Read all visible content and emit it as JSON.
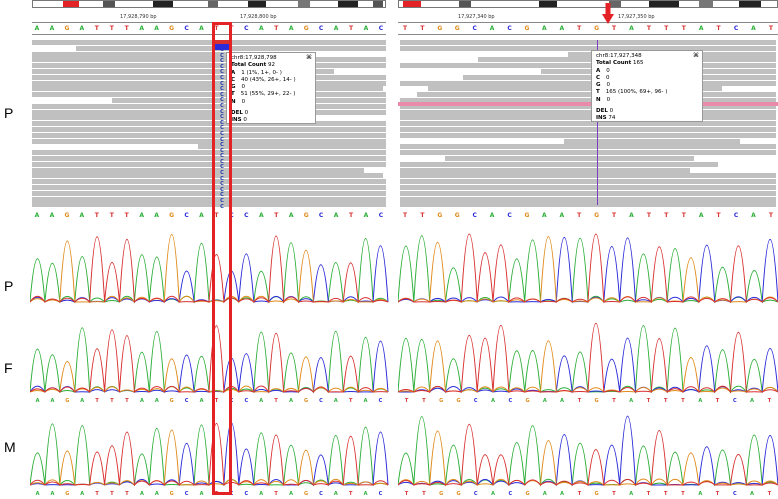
{
  "row_labels": [
    "P",
    "P",
    "F",
    "M"
  ],
  "colors": {
    "A": "#2eaf3a",
    "C": "#2b2bd9",
    "G": "#e08a1a",
    "T": "#d93030",
    "read": "#c0c0c0",
    "highlight": "#e32226",
    "insertion": "#7a3ec2"
  },
  "left_igv": {
    "tick1": "17,928,790 bp",
    "tick2": "17,928,800 bp",
    "reference_bases": [
      "A",
      "A",
      "G",
      "A",
      "T",
      "T",
      "T",
      "A",
      "A",
      "G",
      "C",
      "A",
      "T",
      "T",
      "C",
      "A",
      "T",
      "A",
      "G",
      "C",
      "A",
      "T",
      "A",
      "C"
    ],
    "read_base_column": [
      "C",
      "C",
      "C",
      "C",
      "C",
      "C",
      "C",
      "C",
      "C",
      "C",
      "C",
      "C",
      "C",
      "C",
      "C",
      "C",
      "C",
      "C",
      "C",
      "C",
      "C",
      "C",
      "C",
      "C",
      "C",
      "C",
      "C",
      "C",
      "C"
    ],
    "consensus_bases": [
      "A",
      "A",
      "G",
      "A",
      "T",
      "T",
      "T",
      "A",
      "A",
      "G",
      "C",
      "A",
      "T",
      "C",
      "C",
      "A",
      "T",
      "A",
      "G",
      "C",
      "A",
      "T",
      "A",
      "C"
    ],
    "popup": {
      "close": "⌘",
      "position": "chr8:17,928,798",
      "total_label": "Total Count",
      "total_value": "92",
      "lines": [
        {
          "base": "A",
          "value": "1 (1%, 1+, 0- )"
        },
        {
          "base": "C",
          "value": "40 (43%, 26+, 14- )"
        },
        {
          "base": "G",
          "value": "0"
        },
        {
          "base": "T",
          "value": "51 (55%, 29+, 22- )"
        },
        {
          "base": "N",
          "value": "0"
        }
      ],
      "del_label": "DEL",
      "del_value": "0",
      "ins_label": "INS",
      "ins_value": "0"
    }
  },
  "right_igv": {
    "tick1": "17,927,340 bp",
    "tick2": "17,927,350 bp",
    "reference_bases": [
      "T",
      "T",
      "G",
      "G",
      "C",
      "A",
      "C",
      "G",
      "A",
      "A",
      "T",
      "G",
      "T",
      "A",
      "T",
      "T",
      "T",
      "A",
      "T",
      "C",
      "A",
      "T"
    ],
    "consensus_bases": [
      "T",
      "T",
      "G",
      "G",
      "C",
      "A",
      "C",
      "G",
      "A",
      "A",
      "T",
      "G",
      "T",
      "A",
      "T",
      "T",
      "T",
      "A",
      "T",
      "C",
      "A",
      "T"
    ],
    "popup": {
      "close": "⌘",
      "position": "chr8:17,927,348",
      "total_label": "Total Count",
      "total_value": "165",
      "lines": [
        {
          "base": "A",
          "value": "0"
        },
        {
          "base": "C",
          "value": "0"
        },
        {
          "base": "G",
          "value": "0"
        },
        {
          "base": "T",
          "value": "165 (100%, 69+, 96- )"
        },
        {
          "base": "N",
          "value": "0"
        }
      ],
      "del_label": "DEL",
      "del_value": "0",
      "ins_label": "INS",
      "ins_value": "74"
    }
  },
  "left_traces": [
    {
      "label": "P",
      "bases": []
    },
    {
      "label": "F",
      "bases": [
        "A",
        "A",
        "G",
        "A",
        "T",
        "T",
        "T",
        "A",
        "A",
        "G",
        "C",
        "A",
        "T",
        "C",
        "C",
        "A",
        "T",
        "A",
        "G",
        "C",
        "A",
        "T",
        "A",
        "C"
      ]
    },
    {
      "label": "M",
      "bases": [
        "A",
        "A",
        "G",
        "A",
        "T",
        "T",
        "T",
        "A",
        "A",
        "G",
        "C",
        "A",
        "T",
        "C",
        "C",
        "A",
        "T",
        "A",
        "G",
        "C",
        "A",
        "T",
        "A",
        "C"
      ]
    }
  ],
  "right_traces": [
    {
      "label": "P",
      "bases": []
    },
    {
      "label": "F",
      "bases": [
        "T",
        "T",
        "G",
        "G",
        "C",
        "A",
        "C",
        "G",
        "A",
        "A",
        "T",
        "G",
        "T",
        "A",
        "T",
        "T",
        "T",
        "A",
        "T",
        "C",
        "A",
        "T"
      ]
    },
    {
      "label": "M",
      "bases": [
        "T",
        "T",
        "G",
        "G",
        "C",
        "A",
        "C",
        "G",
        "A",
        "A",
        "T",
        "G",
        "T",
        "A",
        "T",
        "T",
        "T",
        "A",
        "T",
        "C",
        "A",
        "T"
      ]
    }
  ]
}
